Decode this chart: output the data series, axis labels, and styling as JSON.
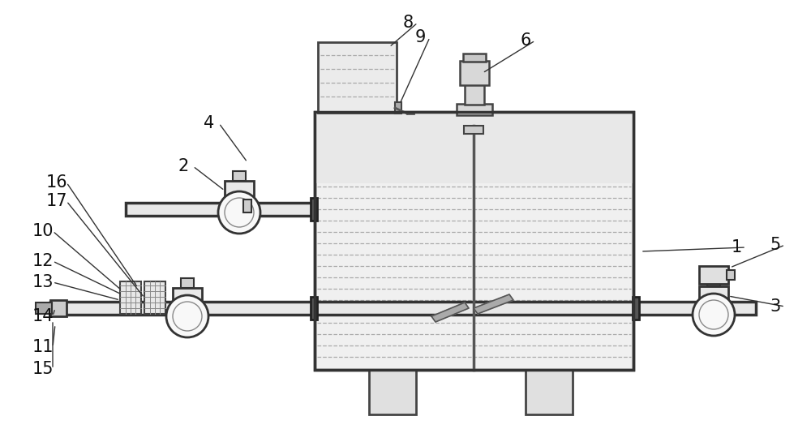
{
  "bg_color": "#ffffff",
  "tank_fill": "#f5f5f5",
  "tank_ec": "#333333",
  "pipe_fill": "#e0e0e0",
  "pipe_ec": "#222222",
  "gray_fill": "#d8d8d8",
  "light_gray": "#eeeeee",
  "dark_ec": "#333333",
  "dashed_color": "#999999",
  "valve_fill": "#f0f0f0",
  "valve_ec": "#333333"
}
